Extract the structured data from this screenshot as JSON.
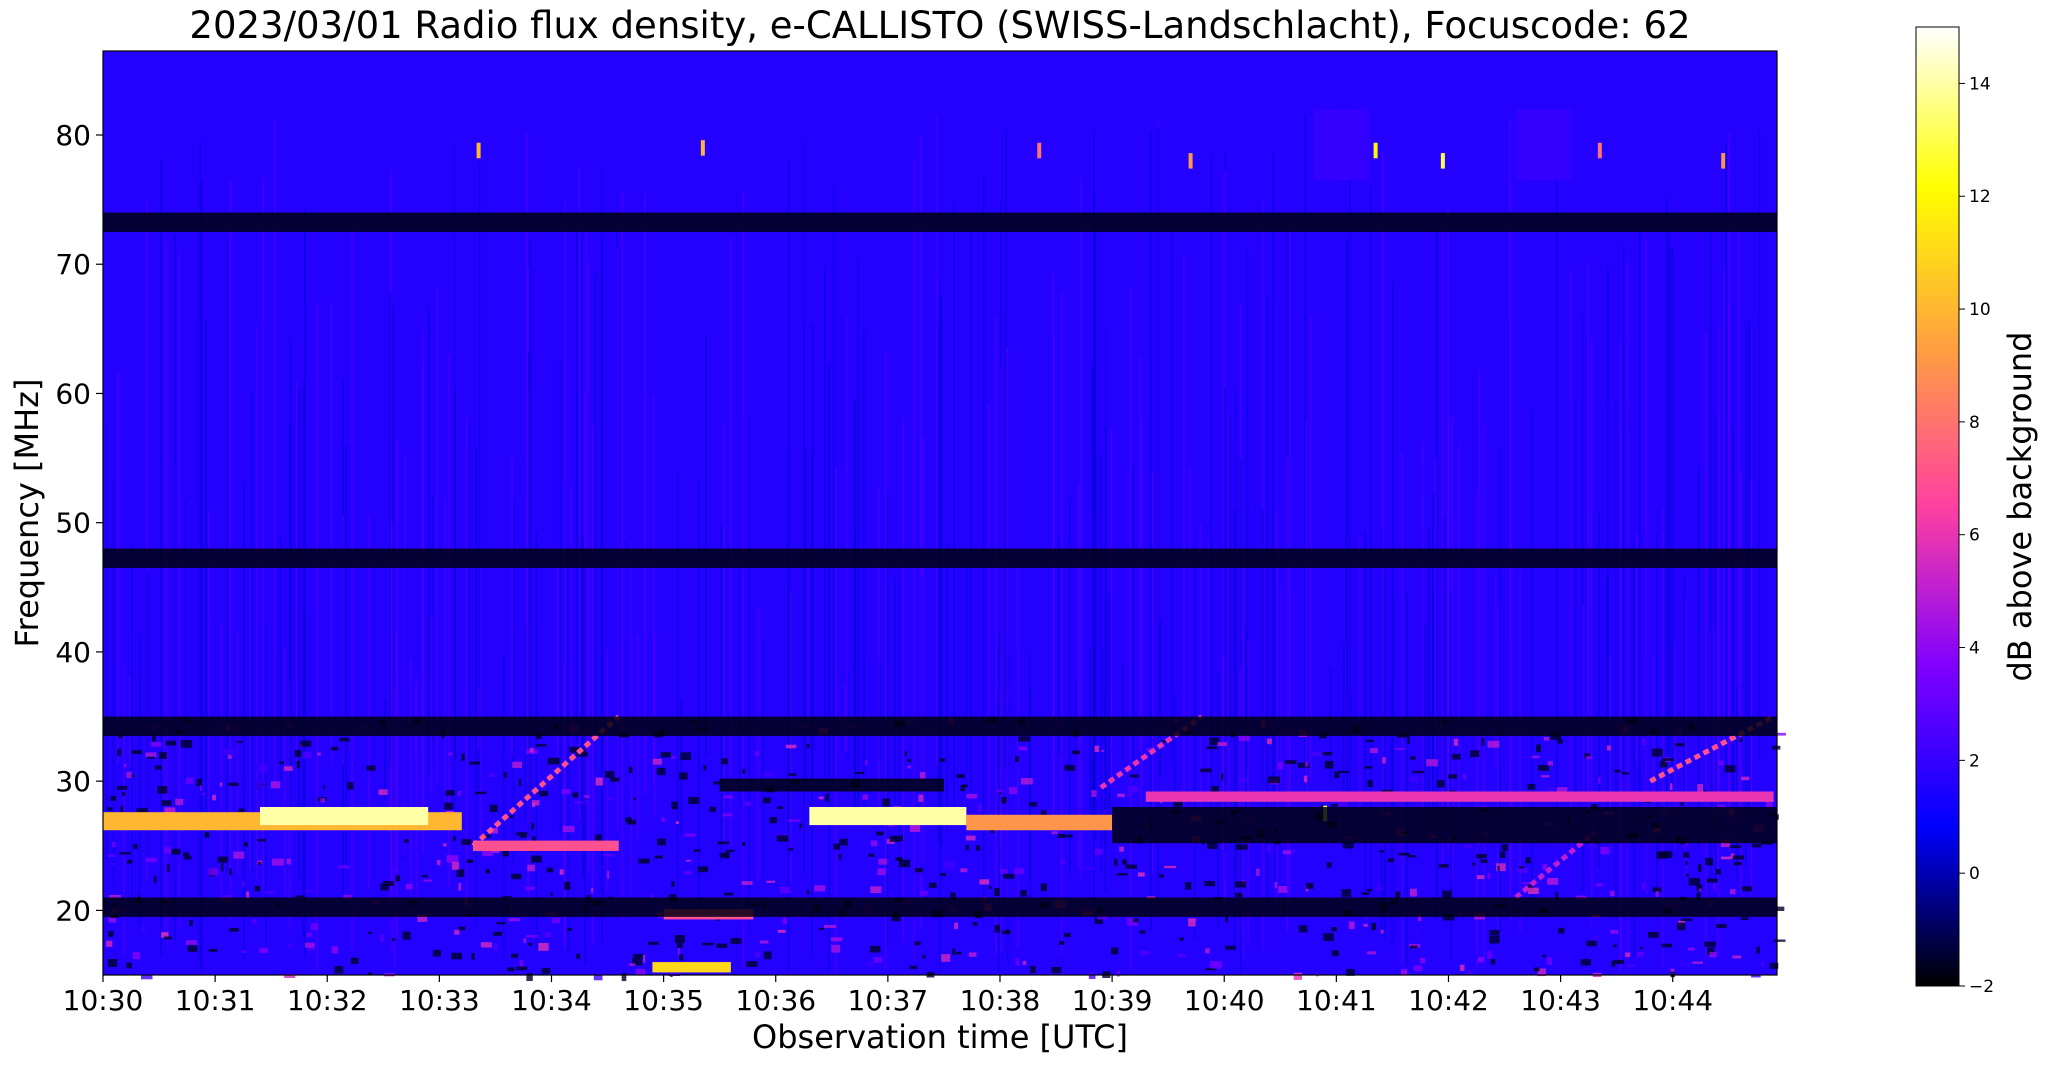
{
  "chart_data": {
    "type": "heatmap",
    "title": "2023/03/01  Radio flux density, e-CALLISTO (SWISS-Landschlacht), Focuscode: 62",
    "xlabel": "Observation time [UTC]",
    "ylabel": "Frequency [MHz]",
    "colorbar_label": "dB above background",
    "x_ticks": [
      "10:30",
      "10:31",
      "10:32",
      "10:33",
      "10:34",
      "10:35",
      "10:36",
      "10:37",
      "10:38",
      "10:39",
      "10:40",
      "10:41",
      "10:42",
      "10:43",
      "10:44"
    ],
    "x_range_minutes": [
      0,
      14.93
    ],
    "y_ticks": [
      20,
      30,
      40,
      50,
      60,
      70,
      80
    ],
    "ylim": [
      15,
      86.5
    ],
    "colorbar_ticks": [
      -2,
      0,
      2,
      4,
      6,
      8,
      10,
      12,
      14
    ],
    "colorbar_range": [
      -2,
      15
    ],
    "colormap": "gnuplot2",
    "colormap_stops": [
      "#000000",
      "#0000ff",
      "#8000ff",
      "#ff40a0",
      "#ffa040",
      "#ffff00",
      "#ffffff"
    ],
    "features": [
      {
        "kind": "strong_band",
        "t_start": 0.0,
        "t_end": 3.2,
        "f_low": 26.2,
        "f_high": 27.6,
        "db": 10
      },
      {
        "kind": "strong_band",
        "t_start": 1.4,
        "t_end": 2.9,
        "f_low": 26.6,
        "f_high": 28.0,
        "db": 14
      },
      {
        "kind": "strong_band",
        "t_start": 6.3,
        "t_end": 7.7,
        "f_low": 26.6,
        "f_high": 28.0,
        "db": 14
      },
      {
        "kind": "strong_band",
        "t_start": 7.7,
        "t_end": 9.0,
        "f_low": 26.2,
        "f_high": 27.4,
        "db": 9
      },
      {
        "kind": "strong_band",
        "t_start": 4.9,
        "t_end": 5.6,
        "f_low": 15.2,
        "f_high": 16.0,
        "db": 11
      },
      {
        "kind": "moderate_band",
        "t_start": 3.3,
        "t_end": 4.6,
        "f_low": 24.6,
        "f_high": 25.4,
        "db": 7
      },
      {
        "kind": "moderate_band",
        "t_start": 9.3,
        "t_end": 14.9,
        "f_low": 28.4,
        "f_high": 29.2,
        "db": 6
      },
      {
        "kind": "moderate_band",
        "t_start": 5.0,
        "t_end": 5.8,
        "f_low": 19.3,
        "f_high": 20.1,
        "db": 7
      },
      {
        "kind": "drift",
        "t_start": 3.3,
        "t_end": 4.6,
        "f_start": 25.0,
        "f_end": 35.0,
        "db": 7
      },
      {
        "kind": "drift",
        "t_start": 8.9,
        "t_end": 9.8,
        "f_start": 29.5,
        "f_end": 35.0,
        "db": 6
      },
      {
        "kind": "drift",
        "t_start": 13.8,
        "t_end": 14.9,
        "f_start": 30.0,
        "f_end": 35.0,
        "db": 7
      },
      {
        "kind": "drift",
        "t_start": 12.6,
        "t_end": 13.3,
        "f_start": 21.0,
        "f_end": 26.0,
        "db": 5
      },
      {
        "kind": "spike",
        "t": 3.35,
        "f": 78.8,
        "db": 10
      },
      {
        "kind": "spike",
        "t": 5.35,
        "f": 79.0,
        "db": 10
      },
      {
        "kind": "spike",
        "t": 8.35,
        "f": 78.8,
        "db": 8
      },
      {
        "kind": "spike",
        "t": 9.7,
        "f": 78.0,
        "db": 9
      },
      {
        "kind": "spike",
        "t": 11.35,
        "f": 78.8,
        "db": 12
      },
      {
        "kind": "spike",
        "t": 11.95,
        "f": 78.0,
        "db": 13
      },
      {
        "kind": "spike",
        "t": 13.35,
        "f": 78.8,
        "db": 8
      },
      {
        "kind": "spike",
        "t": 14.45,
        "f": 78.0,
        "db": 9
      },
      {
        "kind": "spike",
        "t": 10.9,
        "f": 27.5,
        "db": 13
      },
      {
        "kind": "box",
        "t_start": 10.8,
        "t_end": 11.3,
        "f_low": 76.5,
        "f_high": 82.0,
        "db": 2
      },
      {
        "kind": "box",
        "t_start": 12.6,
        "t_end": 13.1,
        "f_low": 76.5,
        "f_high": 82.0,
        "db": 2
      },
      {
        "kind": "dark_band",
        "f_low": 72.5,
        "f_high": 74.0
      },
      {
        "kind": "dark_band",
        "f_low": 46.5,
        "f_high": 48.0
      },
      {
        "kind": "dark_band",
        "f_low": 33.5,
        "f_high": 35.0
      },
      {
        "kind": "dark_band",
        "f_low": 25.2,
        "f_high": 28.0,
        "t_start": 9.0,
        "t_end": 14.93
      },
      {
        "kind": "dark_band",
        "f_low": 29.2,
        "f_high": 30.2,
        "t_start": 5.5,
        "t_end": 7.5
      },
      {
        "kind": "dark_band",
        "f_low": 19.5,
        "f_high": 21.0
      }
    ]
  }
}
